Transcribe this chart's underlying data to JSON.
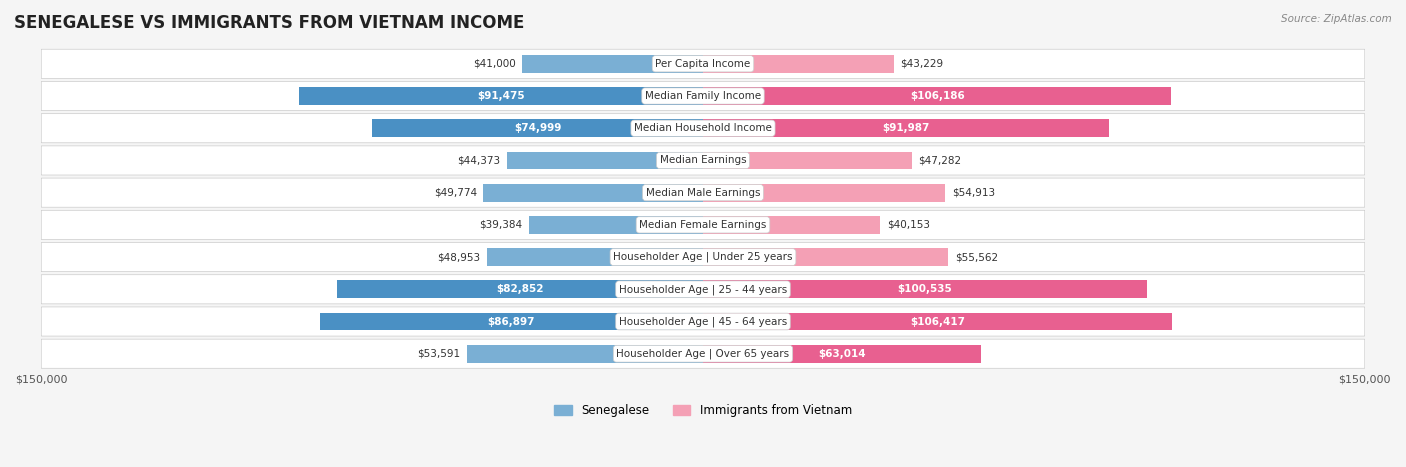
{
  "title": "SENEGALESE VS IMMIGRANTS FROM VIETNAM INCOME",
  "source": "Source: ZipAtlas.com",
  "categories": [
    "Per Capita Income",
    "Median Family Income",
    "Median Household Income",
    "Median Earnings",
    "Median Male Earnings",
    "Median Female Earnings",
    "Householder Age | Under 25 years",
    "Householder Age | 25 - 44 years",
    "Householder Age | 45 - 64 years",
    "Householder Age | Over 65 years"
  ],
  "senegalese": [
    41000,
    91475,
    74999,
    44373,
    49774,
    39384,
    48953,
    82852,
    86897,
    53591
  ],
  "vietnam": [
    43229,
    106186,
    91987,
    47282,
    54913,
    40153,
    55562,
    100535,
    106417,
    63014
  ],
  "senegalese_labels": [
    "$41,000",
    "$91,475",
    "$74,999",
    "$44,373",
    "$49,774",
    "$39,384",
    "$48,953",
    "$82,852",
    "$86,897",
    "$53,591"
  ],
  "vietnam_labels": [
    "$43,229",
    "$106,186",
    "$91,987",
    "$47,282",
    "$54,913",
    "$40,153",
    "$55,562",
    "$100,535",
    "$106,417",
    "$63,014"
  ],
  "max_val": 150000,
  "color_senegalese": "#7aafd4",
  "color_vietnam": "#f4a0b5",
  "color_senegalese_large": "#4a90c4",
  "color_vietnam_large": "#e86090",
  "bg_color": "#f5f5f5",
  "row_bg": "#ffffff",
  "legend_senegalese": "Senegalese",
  "legend_vietnam": "Immigrants from Vietnam"
}
